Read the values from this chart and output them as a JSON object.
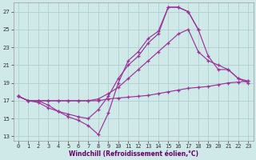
{
  "xlabel": "Windchill (Refroidissement éolien,°C)",
  "background_color": "#cfe8e8",
  "grid_color": "#b0d0d0",
  "line_color": "#993399",
  "xlim": [
    -0.5,
    23.5
  ],
  "ylim": [
    12.5,
    28.0
  ],
  "yticks": [
    13,
    15,
    17,
    19,
    21,
    23,
    25,
    27
  ],
  "xticks": [
    0,
    1,
    2,
    3,
    4,
    5,
    6,
    7,
    8,
    9,
    10,
    11,
    12,
    13,
    14,
    15,
    16,
    17,
    18,
    19,
    20,
    21,
    22,
    23
  ],
  "lines": [
    {
      "x": [
        0,
        1,
        2,
        3,
        4,
        5,
        6,
        7,
        8,
        9,
        10,
        11,
        12,
        13,
        14,
        15,
        16,
        17,
        18,
        19,
        20,
        21,
        22,
        23
      ],
      "y": [
        17.5,
        17.0,
        16.8,
        16.2,
        15.8,
        15.2,
        14.8,
        14.2,
        13.2,
        15.6,
        19.0,
        21.5,
        22.5,
        24.0,
        24.8,
        27.5,
        27.5,
        27.0,
        25.0,
        null,
        null,
        null,
        null,
        null
      ]
    },
    {
      "x": [
        0,
        1,
        2,
        3,
        4,
        5,
        6,
        7,
        8,
        9,
        10,
        11,
        12,
        13,
        14,
        15,
        16,
        17,
        18,
        19,
        20,
        21,
        22,
        23
      ],
      "y": [
        17.5,
        17.0,
        17.0,
        16.5,
        15.8,
        15.5,
        15.2,
        15.0,
        16.0,
        17.5,
        19.5,
        21.0,
        22.0,
        23.5,
        24.5,
        27.5,
        27.5,
        27.0,
        25.0,
        22.0,
        20.5,
        20.5,
        19.5,
        19.0
      ]
    },
    {
      "x": [
        0,
        1,
        2,
        3,
        4,
        5,
        6,
        7,
        8,
        9,
        10,
        11,
        12,
        13,
        14,
        15,
        16,
        17,
        18,
        19,
        20,
        21,
        22,
        23
      ],
      "y": [
        17.5,
        17.0,
        17.0,
        17.0,
        17.0,
        17.0,
        17.0,
        17.0,
        17.2,
        17.8,
        18.5,
        19.5,
        20.5,
        21.5,
        22.5,
        23.5,
        24.5,
        25.0,
        22.5,
        21.5,
        21.0,
        20.5,
        19.5,
        19.2
      ]
    },
    {
      "x": [
        0,
        1,
        2,
        3,
        4,
        5,
        6,
        7,
        8,
        9,
        10,
        11,
        12,
        13,
        14,
        15,
        16,
        17,
        18,
        19,
        20,
        21,
        22,
        23
      ],
      "y": [
        17.5,
        17.0,
        17.0,
        17.0,
        17.0,
        17.0,
        17.0,
        17.0,
        17.0,
        17.2,
        17.3,
        17.4,
        17.5,
        17.6,
        17.8,
        18.0,
        18.2,
        18.4,
        18.5,
        18.6,
        18.8,
        19.0,
        19.1,
        19.2
      ]
    }
  ]
}
